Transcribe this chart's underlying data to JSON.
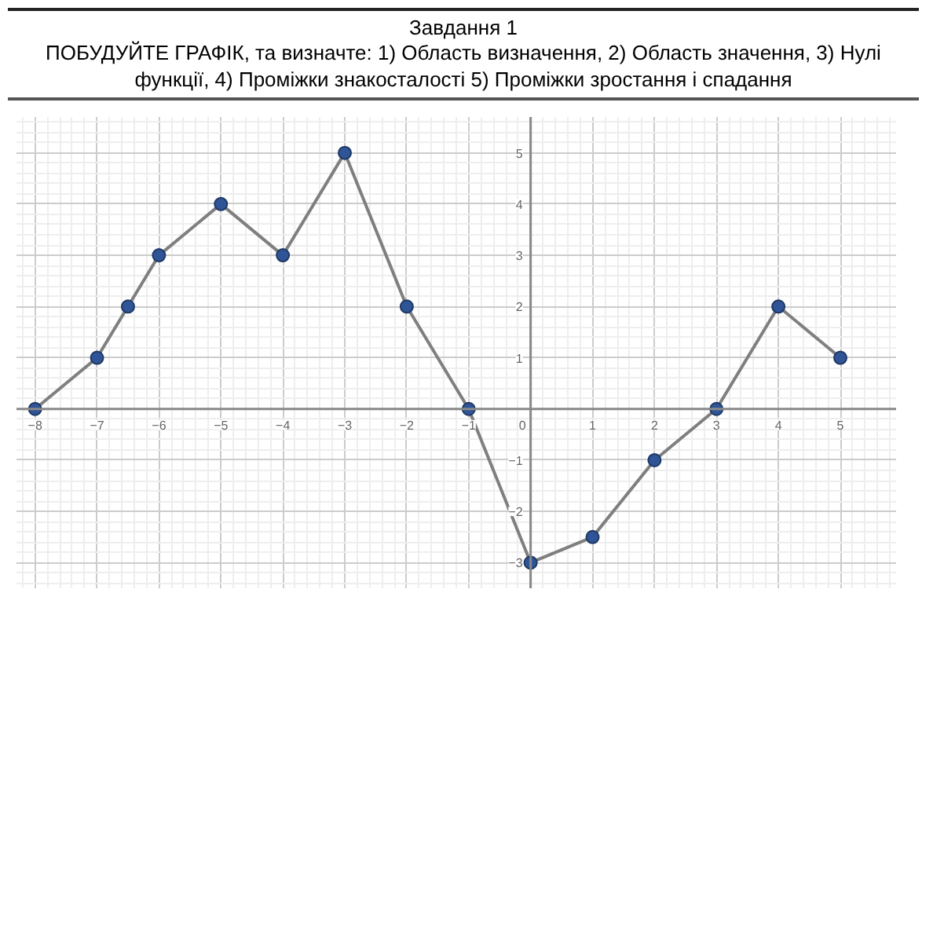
{
  "chart_data": {
    "type": "line",
    "title": "Завдання 1",
    "subtitle": "ПОБУДУЙТЕ ГРАФІК, та визначте: 1) Область визначення, 2) Область значення, 3) Нулі функції, 4) Проміжки знакосталості 5) Проміжки зростання і спадання",
    "x": [
      -8,
      -7,
      -6.5,
      -6,
      -5,
      -4,
      -3,
      -2,
      -1,
      0,
      1,
      2,
      3,
      4,
      5
    ],
    "series": [
      {
        "color": "#7f7f7f",
        "values": [
          0,
          1,
          2,
          3,
          4,
          3,
          5,
          2,
          0,
          -3,
          -2.5,
          -1,
          0,
          2,
          1
        ]
      }
    ],
    "marker": "circle",
    "line_style": "solid",
    "grid": true,
    "xlim": [
      -8.3,
      5.9
    ],
    "ylim": [
      -3.5,
      5.7
    ],
    "xticks": [
      -8,
      -7,
      -6,
      -5,
      -4,
      -3,
      -2,
      -1,
      0,
      1,
      2,
      3,
      4,
      5
    ],
    "yticks": [
      -3,
      -2,
      -1,
      {
        "value": 0,
        "label": null
      },
      1,
      2,
      3,
      4,
      5
    ]
  }
}
